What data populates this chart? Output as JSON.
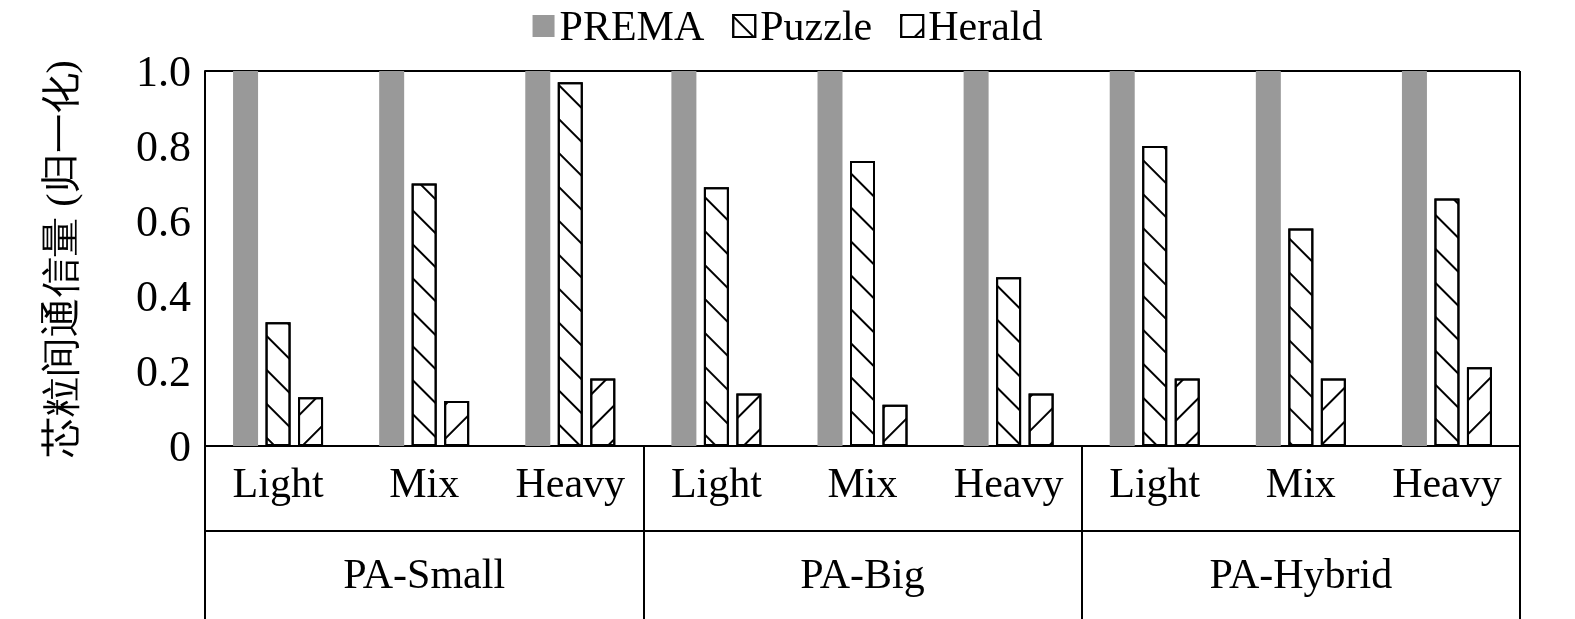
{
  "chart_data": {
    "type": "bar",
    "ylabel": "芯粒间通信量 (归一化)",
    "categories": [
      "Light",
      "Mix",
      "Heavy",
      "Light",
      "Mix",
      "Heavy",
      "Light",
      "Mix",
      "Heavy"
    ],
    "annotations": [
      "PA-Small",
      "PA-Big",
      "PA-Hybrid"
    ],
    "series": [
      {
        "name": "PREMA",
        "color": "#999999",
        "values": [
          1,
          1,
          1,
          1,
          1,
          1,
          1,
          1,
          1
        ]
      },
      {
        "name": "Puzzle",
        "color": "#ffffff",
        "values": [
          0.33,
          0.7,
          0.97,
          0.69,
          0.76,
          0.45,
          0.8,
          0.58,
          0.66
        ]
      },
      {
        "name": "Herald",
        "color": "#ffffff",
        "values": [
          0.13,
          0.12,
          0.18,
          0.14,
          0.11,
          0.14,
          0.18,
          0.18,
          0.21
        ]
      }
    ],
    "ylim": [
      0,
      1
    ],
    "yticks": [
      0,
      0.2,
      0.4,
      0.6,
      0.8,
      {
        "value": 1,
        "label": "1.0"
      }
    ],
    "grid": false,
    "legend": "top"
  }
}
